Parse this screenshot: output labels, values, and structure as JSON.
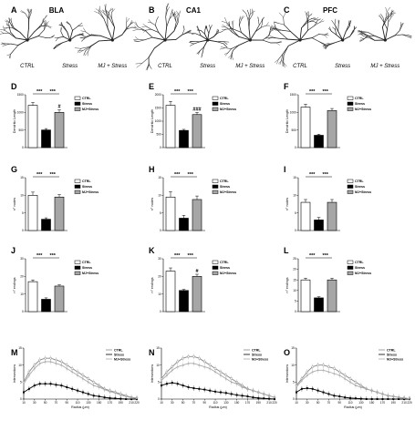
{
  "morphology": {
    "conditions": [
      "CTRL",
      "Stress",
      "MJ + Stress"
    ],
    "panels": [
      {
        "label": "A",
        "title": "BLA"
      },
      {
        "label": "B",
        "title": "CA1"
      },
      {
        "label": "C",
        "title": "PFC"
      }
    ]
  },
  "colors": {
    "ctrl": "#ffffff",
    "stress": "#000000",
    "mj": "#a6a6a6"
  },
  "chart_data": [
    {
      "label": "D",
      "type": "bar",
      "ylabel": "Dendritic Length",
      "categories": [
        "CTRL",
        "Stress",
        "MJ+Stress"
      ],
      "values": [
        1200,
        500,
        1000
      ],
      "errors": [
        80,
        40,
        70
      ],
      "ylim": [
        0,
        1500
      ],
      "yticks": [
        "0",
        "500",
        "1000",
        "1500"
      ],
      "annotations": [
        {
          "text": "***",
          "from": 0,
          "to": 1
        },
        {
          "text": "***",
          "from": 1,
          "to": 2
        },
        {
          "text": "#",
          "bar": 2
        }
      ]
    },
    {
      "label": "E",
      "type": "bar",
      "ylabel": "Dendritic Length",
      "categories": [
        "CTRL",
        "Stress",
        "MJ+Stress"
      ],
      "values": [
        1600,
        650,
        1250
      ],
      "errors": [
        150,
        40,
        80
      ],
      "ylim": [
        0,
        2000
      ],
      "yticks": [
        "0",
        "500",
        "1000",
        "1500",
        "2000"
      ],
      "annotations": [
        {
          "text": "***",
          "from": 0,
          "to": 1
        },
        {
          "text": "***",
          "from": 1,
          "to": 2
        },
        {
          "text": "###",
          "bar": 2
        }
      ]
    },
    {
      "label": "F",
      "type": "bar",
      "ylabel": "Dendritic Length",
      "categories": [
        "CTRL",
        "Stress",
        "MJ+Stress"
      ],
      "values": [
        1150,
        350,
        1050
      ],
      "errors": [
        80,
        30,
        60
      ],
      "ylim": [
        0,
        1500
      ],
      "yticks": [
        "0",
        "500",
        "1000",
        "1500"
      ],
      "annotations": [
        {
          "text": "***",
          "from": 0,
          "to": 1
        },
        {
          "text": "***",
          "from": 1,
          "to": 2
        }
      ]
    },
    {
      "label": "G",
      "type": "bar",
      "ylabel": "n° nodes",
      "categories": [
        "CTRL",
        "Stress",
        "MJ+Stress"
      ],
      "values": [
        10,
        3.2,
        9.5
      ],
      "errors": [
        0.9,
        0.4,
        0.7
      ],
      "ylim": [
        0,
        15
      ],
      "yticks": [
        "0",
        "5",
        "10",
        "15"
      ],
      "annotations": [
        {
          "text": "***",
          "from": 0,
          "to": 1
        },
        {
          "text": "***",
          "from": 1,
          "to": 2
        }
      ]
    },
    {
      "label": "H",
      "type": "bar",
      "ylabel": "n° nodes",
      "categories": [
        "CTRL",
        "Stress",
        "MJ+Stress"
      ],
      "values": [
        9.5,
        3.5,
        8.8
      ],
      "errors": [
        1.5,
        0.8,
        1.0
      ],
      "ylim": [
        0,
        15
      ],
      "yticks": [
        "0",
        "5",
        "10",
        "15"
      ],
      "annotations": [
        {
          "text": "***",
          "from": 0,
          "to": 1
        },
        {
          "text": "***",
          "from": 1,
          "to": 2
        }
      ]
    },
    {
      "label": "I",
      "type": "bar",
      "ylabel": "n° nodes",
      "categories": [
        "CTRL",
        "Stress",
        "MJ+Stress"
      ],
      "values": [
        8,
        3,
        8
      ],
      "errors": [
        0.8,
        0.7,
        0.8
      ],
      "ylim": [
        0,
        15
      ],
      "yticks": [
        "0",
        "5",
        "10",
        "15"
      ],
      "annotations": [
        {
          "text": "***",
          "from": 0,
          "to": 1
        },
        {
          "text": "***",
          "from": 1,
          "to": 2
        }
      ]
    },
    {
      "label": "J",
      "type": "bar",
      "ylabel": "n° endings",
      "categories": [
        "CTRL",
        "Stress",
        "MJ+Stress"
      ],
      "values": [
        17,
        7,
        14.5
      ],
      "errors": [
        1.0,
        0.8,
        0.7
      ],
      "ylim": [
        0,
        30
      ],
      "yticks": [
        "0",
        "10",
        "20",
        "30"
      ],
      "annotations": [
        {
          "text": "***",
          "from": 0,
          "to": 1
        },
        {
          "text": "***",
          "from": 1,
          "to": 2
        }
      ]
    },
    {
      "label": "K",
      "type": "bar",
      "ylabel": "n° endings",
      "categories": [
        "CTRL",
        "Stress",
        "MJ+Stress"
      ],
      "values": [
        23,
        12,
        20
      ],
      "errors": [
        1.8,
        0.6,
        1.2
      ],
      "ylim": [
        0,
        30
      ],
      "yticks": [
        "0",
        "10",
        "20",
        "30"
      ],
      "annotations": [
        {
          "text": "***",
          "from": 0,
          "to": 1
        },
        {
          "text": "***",
          "from": 1,
          "to": 2
        },
        {
          "text": "#",
          "bar": 2
        }
      ]
    },
    {
      "label": "L",
      "type": "bar",
      "ylabel": "n° endings",
      "categories": [
        "CTRL",
        "Stress",
        "MJ+Stress"
      ],
      "values": [
        15,
        6.5,
        15
      ],
      "errors": [
        0.8,
        0.5,
        0.8
      ],
      "ylim": [
        0,
        25
      ],
      "yticks": [
        "0",
        "5",
        "10",
        "15",
        "20",
        "25"
      ],
      "annotations": [
        {
          "text": "***",
          "from": 0,
          "to": 1
        },
        {
          "text": "***",
          "from": 1,
          "to": 2
        }
      ]
    },
    {
      "label": "M",
      "type": "line",
      "xlabel": "Radius (μm)",
      "ylabel": "Intersections",
      "x": [
        10,
        20,
        30,
        40,
        50,
        60,
        70,
        80,
        90,
        100,
        110,
        120,
        130,
        140,
        150,
        160,
        170,
        180,
        190,
        200,
        210,
        220
      ],
      "xticks": [
        "10",
        "30",
        "50",
        "70",
        "90",
        "110",
        "130",
        "150",
        "170",
        "190",
        "210",
        "220"
      ],
      "ylim": [
        0,
        15
      ],
      "yticks": [
        "0",
        "5",
        "10",
        "15"
      ],
      "series": [
        {
          "name": "CTRL",
          "values": [
            5,
            8,
            10,
            11.5,
            12,
            12,
            11.5,
            11,
            10,
            9,
            8,
            7,
            6,
            5,
            4,
            3,
            2.5,
            2,
            1.5,
            1,
            0.5,
            0.3
          ]
        },
        {
          "name": "Stress",
          "values": [
            2,
            3,
            4,
            4.5,
            4.5,
            4.5,
            4.2,
            4,
            3.5,
            3,
            2.5,
            2,
            1.5,
            1,
            0.8,
            0.5,
            0.3,
            0.2,
            0.1,
            0,
            0,
            0
          ]
        },
        {
          "name": "MJ+Stress",
          "values": [
            4.5,
            7,
            9,
            10.5,
            11,
            11,
            10.5,
            10,
            9,
            8,
            7,
            6,
            5,
            4,
            3.5,
            2.8,
            2.2,
            1.8,
            1.2,
            0.8,
            0.4,
            0.2
          ]
        }
      ]
    },
    {
      "label": "N",
      "type": "line",
      "xlabel": "Radius (μm)",
      "ylabel": "Intersections",
      "x": [
        10,
        20,
        30,
        40,
        50,
        60,
        70,
        80,
        90,
        100,
        110,
        120,
        130,
        140,
        150,
        160,
        170,
        180,
        190,
        200,
        210,
        220
      ],
      "xticks": [
        "10",
        "30",
        "50",
        "70",
        "90",
        "110",
        "130",
        "150",
        "170",
        "190",
        "210",
        "220"
      ],
      "ylim": [
        0,
        15
      ],
      "yticks": [
        "0",
        "5",
        "10",
        "15"
      ],
      "series": [
        {
          "name": "CTRL",
          "values": [
            6,
            8,
            9.5,
            11,
            12,
            12.5,
            12.5,
            12,
            11,
            10,
            9,
            8,
            7,
            6,
            5,
            4,
            3,
            2.5,
            2,
            1.5,
            1,
            0.5
          ]
        },
        {
          "name": "Stress",
          "values": [
            4,
            4.5,
            4.8,
            4.5,
            4,
            3.5,
            3.2,
            3,
            2.8,
            2.5,
            2.2,
            2,
            1.8,
            1.5,
            1.2,
            1,
            0.8,
            0.5,
            0.3,
            0.2,
            0.1,
            0
          ]
        },
        {
          "name": "MJ+Stress",
          "values": [
            5.5,
            7,
            8.5,
            9.5,
            10,
            10.5,
            10.5,
            10,
            9.5,
            9,
            8,
            7,
            6,
            5,
            4.5,
            3.5,
            3,
            2.5,
            2,
            1.5,
            1,
            0.5
          ]
        }
      ]
    },
    {
      "label": "O",
      "type": "line",
      "xlabel": "Radius (μm)",
      "ylabel": "Intersections",
      "x": [
        10,
        20,
        30,
        40,
        50,
        60,
        70,
        80,
        90,
        100,
        110,
        120,
        130,
        140,
        150,
        160,
        170,
        180,
        190,
        200,
        210,
        220
      ],
      "xticks": [
        "10",
        "30",
        "50",
        "70",
        "90",
        "110",
        "130",
        "150",
        "170",
        "190",
        "210",
        "220"
      ],
      "ylim": [
        0,
        15
      ],
      "yticks": [
        "0",
        "5",
        "10",
        "15"
      ],
      "series": [
        {
          "name": "CTRL",
          "values": [
            4,
            6,
            8,
            9.5,
            10,
            10,
            9.5,
            9,
            8,
            7,
            6,
            5,
            4,
            3,
            2.5,
            2,
            1.5,
            1,
            0.8,
            0.5,
            0.3,
            0.1
          ]
        },
        {
          "name": "Stress",
          "values": [
            2,
            3,
            3.2,
            3,
            2.5,
            2,
            1.5,
            1,
            0.8,
            0.5,
            0.3,
            0.2,
            0.1,
            0,
            0,
            0,
            0,
            0,
            0,
            0,
            0,
            0
          ]
        },
        {
          "name": "MJ+Stress",
          "values": [
            3.5,
            5.5,
            7,
            8,
            8.5,
            8.5,
            8,
            7.5,
            7,
            6,
            5,
            4,
            3.5,
            3,
            2.5,
            2,
            1.5,
            1,
            0.8,
            0.5,
            0.3,
            0.1
          ]
        }
      ]
    }
  ]
}
